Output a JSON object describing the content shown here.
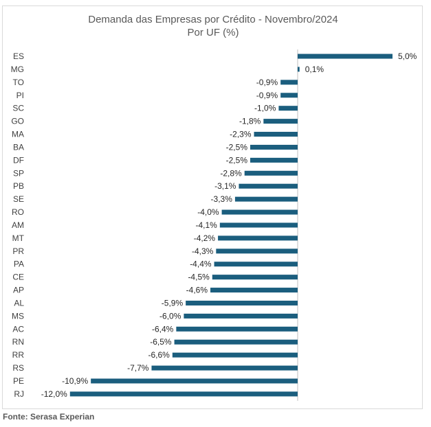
{
  "chart_data": {
    "type": "bar",
    "orientation": "horizontal",
    "title": "Demanda das Empresas por Crédito - Novembro/2024",
    "subtitle": "Por UF (%)",
    "categories": [
      "ES",
      "MG",
      "TO",
      "PI",
      "SC",
      "GO",
      "MA",
      "BA",
      "DF",
      "SP",
      "PB",
      "SE",
      "RO",
      "AM",
      "MT",
      "PR",
      "PA",
      "CE",
      "AP",
      "AL",
      "MS",
      "AC",
      "RN",
      "RR",
      "RS",
      "PE",
      "RJ"
    ],
    "values": [
      5.0,
      0.1,
      -0.9,
      -0.9,
      -1.0,
      -1.8,
      -2.3,
      -2.5,
      -2.5,
      -2.8,
      -3.1,
      -3.3,
      -4.0,
      -4.1,
      -4.2,
      -4.3,
      -4.4,
      -4.5,
      -4.6,
      -5.9,
      -6.0,
      -6.4,
      -6.5,
      -6.6,
      -7.7,
      -10.9,
      -12.0
    ],
    "value_labels": [
      "5,0%",
      "0,1%",
      "-0,9%",
      "-0,9%",
      "-1,0%",
      "-1,8%",
      "-2,3%",
      "-2,5%",
      "-2,5%",
      "-2,8%",
      "-3,1%",
      "-3,3%",
      "-4,0%",
      "-4,1%",
      "-4,2%",
      "-4,3%",
      "-4,4%",
      "-4,5%",
      "-4,6%",
      "-5,9%",
      "-6,0%",
      "-6,4%",
      "-6,5%",
      "-6,6%",
      "-7,7%",
      "-10,9%",
      "-12,0%"
    ],
    "xlim": [
      -12.0,
      5.0
    ],
    "bar_color": "#1b5e7e",
    "grid": false,
    "legend": "none"
  },
  "source": "Fonte: Serasa Experian"
}
